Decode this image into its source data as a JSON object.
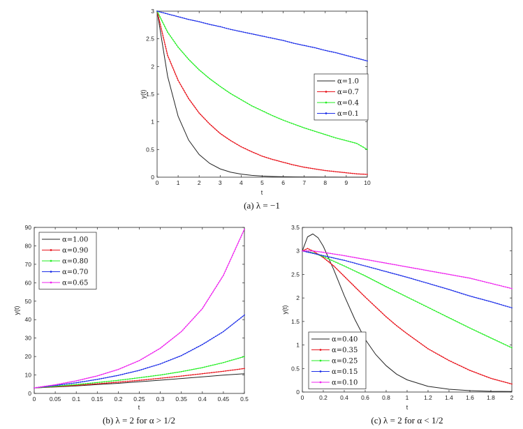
{
  "chart_data": [
    {
      "type": "line",
      "caption": "(a) λ = −1",
      "xlabel": "t",
      "ylabel": "y(t)",
      "xlim": [
        0,
        10
      ],
      "ylim": [
        0,
        3
      ],
      "xticks": [
        0,
        1,
        2,
        3,
        4,
        5,
        6,
        7,
        8,
        9,
        10
      ],
      "yticks": [
        0,
        0.5,
        1,
        1.5,
        2,
        2.5,
        3
      ],
      "xtick_labels": [
        "0",
        "1",
        "2",
        "3",
        "4",
        "5",
        "6",
        "7",
        "8",
        "9",
        "10"
      ],
      "ytick_labels": [
        "0",
        "0.5",
        "1",
        "1.5",
        "2",
        "2.5",
        "3"
      ],
      "legend_position": "center-right",
      "x": [
        0,
        0.5,
        1,
        1.5,
        2,
        2.5,
        3,
        3.5,
        4,
        4.5,
        5,
        5.5,
        6,
        6.5,
        7,
        7.5,
        8,
        8.5,
        9,
        9.5,
        10
      ],
      "series": [
        {
          "name": "α=1.0",
          "color": "#222222",
          "marker": false,
          "values": [
            3,
            1.82,
            1.1,
            0.67,
            0.41,
            0.25,
            0.15,
            0.09,
            0.055,
            0.033,
            0.02,
            0.012,
            0.007,
            0.005,
            0.003,
            0.002,
            0.001,
            0.001,
            0,
            0,
            0
          ]
        },
        {
          "name": "α=0.7",
          "color": "#e8141c",
          "marker": true,
          "values": [
            3,
            2.2,
            1.75,
            1.42,
            1.16,
            0.96,
            0.79,
            0.66,
            0.55,
            0.46,
            0.38,
            0.32,
            0.27,
            0.22,
            0.18,
            0.15,
            0.12,
            0.1,
            0.08,
            0.06,
            0.05
          ]
        },
        {
          "name": "α=0.4",
          "color": "#22ee22",
          "marker": true,
          "values": [
            3,
            2.62,
            2.35,
            2.13,
            1.94,
            1.78,
            1.64,
            1.51,
            1.4,
            1.29,
            1.2,
            1.11,
            1.03,
            0.96,
            0.89,
            0.83,
            0.77,
            0.71,
            0.66,
            0.61,
            0.5
          ]
        },
        {
          "name": "α=0.1",
          "color": "#1c2ee8",
          "marker": true,
          "values": [
            3,
            2.95,
            2.9,
            2.85,
            2.81,
            2.76,
            2.72,
            2.67,
            2.63,
            2.59,
            2.55,
            2.51,
            2.47,
            2.42,
            2.38,
            2.34,
            2.29,
            2.25,
            2.2,
            2.15,
            2.1
          ]
        }
      ]
    },
    {
      "type": "line",
      "caption": "(b) λ = 2 for α > 1/2",
      "xlabel": "t",
      "ylabel": "y(t)",
      "xlim": [
        0,
        0.5
      ],
      "ylim": [
        0,
        90
      ],
      "xticks": [
        0,
        0.05,
        0.1,
        0.15,
        0.2,
        0.25,
        0.3,
        0.35,
        0.4,
        0.45,
        0.5
      ],
      "yticks": [
        0,
        10,
        20,
        30,
        40,
        50,
        60,
        70,
        80,
        90
      ],
      "xtick_labels": [
        "0",
        "0.05",
        "0.1",
        "0.15",
        "0.2",
        "0.25",
        "0.3",
        "0.35",
        "0.4",
        "0.45",
        "0.5"
      ],
      "ytick_labels": [
        "0",
        "10",
        "20",
        "30",
        "40",
        "50",
        "60",
        "70",
        "80",
        "90"
      ],
      "legend_position": "top-left",
      "x": [
        0,
        0.05,
        0.1,
        0.15,
        0.2,
        0.25,
        0.3,
        0.35,
        0.4,
        0.45,
        0.5
      ],
      "series": [
        {
          "name": "α=1.00",
          "color": "#222222",
          "marker": false,
          "values": [
            3,
            3.5,
            4.1,
            4.8,
            5.5,
            6.3,
            7.2,
            8.1,
            9.0,
            9.9,
            10.7
          ]
        },
        {
          "name": "α=0.90",
          "color": "#e8141c",
          "marker": true,
          "values": [
            3,
            3.7,
            4.4,
            5.2,
            6.1,
            7.1,
            8.2,
            9.4,
            10.7,
            12.0,
            13.5
          ]
        },
        {
          "name": "α=0.80",
          "color": "#22ee22",
          "marker": true,
          "values": [
            3,
            3.9,
            4.8,
            5.9,
            7.1,
            8.5,
            10.0,
            11.8,
            14.0,
            16.7,
            20.0
          ]
        },
        {
          "name": "α=0.70",
          "color": "#1c2ee8",
          "marker": true,
          "values": [
            3,
            4.3,
            5.8,
            7.6,
            9.8,
            12.5,
            16.0,
            20.5,
            26.5,
            33.5,
            42.5
          ]
        },
        {
          "name": "α=0.65",
          "color": "#ee22ee",
          "marker": true,
          "values": [
            3,
            4.7,
            6.8,
            9.5,
            13.0,
            17.8,
            24.5,
            33.5,
            46.0,
            64.0,
            89.0
          ]
        }
      ]
    },
    {
      "type": "line",
      "caption": "(c) λ = 2 for α < 1/2",
      "xlabel": "t",
      "ylabel": "y(t)",
      "xlim": [
        0,
        2
      ],
      "ylim": [
        0,
        3.5
      ],
      "xticks": [
        0,
        0.2,
        0.4,
        0.6,
        0.8,
        1,
        1.2,
        1.4,
        1.6,
        1.8,
        2
      ],
      "yticks": [
        0,
        0.5,
        1,
        1.5,
        2,
        2.5,
        3,
        3.5
      ],
      "xtick_labels": [
        "0",
        "0.2",
        "0.4",
        "0.6",
        "0.8",
        "1",
        "1.2",
        "1.4",
        "1.6",
        "1.8",
        "2"
      ],
      "ytick_labels": [
        "0",
        "0.5",
        "1",
        "1.5",
        "2",
        "2.5",
        "3",
        "3.5"
      ],
      "legend_position": "bottom-left",
      "series": [
        {
          "name": "α=0.40",
          "color": "#222222",
          "marker": false,
          "x": [
            0,
            0.05,
            0.1,
            0.15,
            0.2,
            0.3,
            0.4,
            0.5,
            0.6,
            0.7,
            0.8,
            0.9,
            1.0,
            1.2,
            1.4,
            1.6,
            1.8,
            2.0
          ],
          "values": [
            3,
            3.3,
            3.36,
            3.28,
            3.1,
            2.6,
            2.05,
            1.55,
            1.12,
            0.8,
            0.56,
            0.38,
            0.26,
            0.12,
            0.06,
            0.03,
            0.015,
            0.01
          ]
        },
        {
          "name": "α=0.35",
          "color": "#e8141c",
          "marker": true,
          "x": [
            0,
            0.05,
            0.1,
            0.2,
            0.3,
            0.4,
            0.5,
            0.6,
            0.7,
            0.8,
            0.9,
            1.0,
            1.2,
            1.4,
            1.6,
            1.8,
            2.0
          ],
          "values": [
            3,
            3.05,
            3.0,
            2.86,
            2.68,
            2.46,
            2.24,
            2.02,
            1.81,
            1.6,
            1.41,
            1.24,
            0.92,
            0.67,
            0.46,
            0.29,
            0.17
          ]
        },
        {
          "name": "α=0.25",
          "color": "#22ee22",
          "marker": true,
          "x": [
            0,
            0.1,
            0.2,
            0.4,
            0.6,
            0.8,
            1.0,
            1.2,
            1.4,
            1.6,
            1.8,
            2.0
          ],
          "values": [
            3,
            2.96,
            2.88,
            2.68,
            2.47,
            2.24,
            2.02,
            1.8,
            1.58,
            1.36,
            1.15,
            0.94
          ]
        },
        {
          "name": "α=0.15",
          "color": "#1c2ee8",
          "marker": true,
          "x": [
            0,
            0.1,
            0.2,
            0.4,
            0.6,
            0.8,
            1.0,
            1.2,
            1.4,
            1.6,
            1.8,
            2.0
          ],
          "values": [
            3,
            2.95,
            2.9,
            2.8,
            2.68,
            2.56,
            2.44,
            2.31,
            2.18,
            2.04,
            1.92,
            1.79
          ]
        },
        {
          "name": "α=0.10",
          "color": "#ee22ee",
          "marker": true,
          "x": [
            0,
            0.1,
            0.2,
            0.4,
            0.6,
            0.8,
            1.0,
            1.2,
            1.4,
            1.6,
            1.8,
            2.0
          ],
          "values": [
            3,
            3.0,
            2.97,
            2.9,
            2.82,
            2.74,
            2.66,
            2.58,
            2.5,
            2.42,
            2.31,
            2.2
          ]
        }
      ]
    }
  ]
}
